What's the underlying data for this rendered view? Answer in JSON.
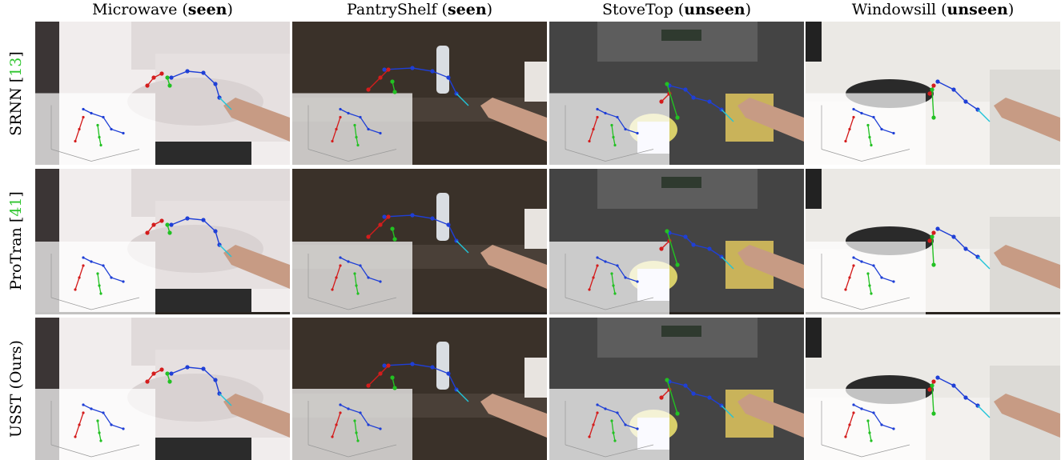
{
  "columns": [
    {
      "name": "Microwave",
      "tag": "seen"
    },
    {
      "name": "PantryShelf",
      "tag": "seen"
    },
    {
      "name": "StoveTop",
      "tag": "unseen"
    },
    {
      "name": "Windowsill",
      "tag": "unseen"
    }
  ],
  "rows": [
    {
      "method": "SRNN",
      "ref": "13"
    },
    {
      "method": "ProTran",
      "ref": "41"
    },
    {
      "method": "USST (Ours)",
      "ref": ""
    }
  ],
  "colors": {
    "observed_trajectory": "#1f3fd6",
    "ground_truth_future": "#d41c1c",
    "predicted_future": "#22c122",
    "connector": "#21c4d8",
    "citation": "#2ec52e"
  }
}
